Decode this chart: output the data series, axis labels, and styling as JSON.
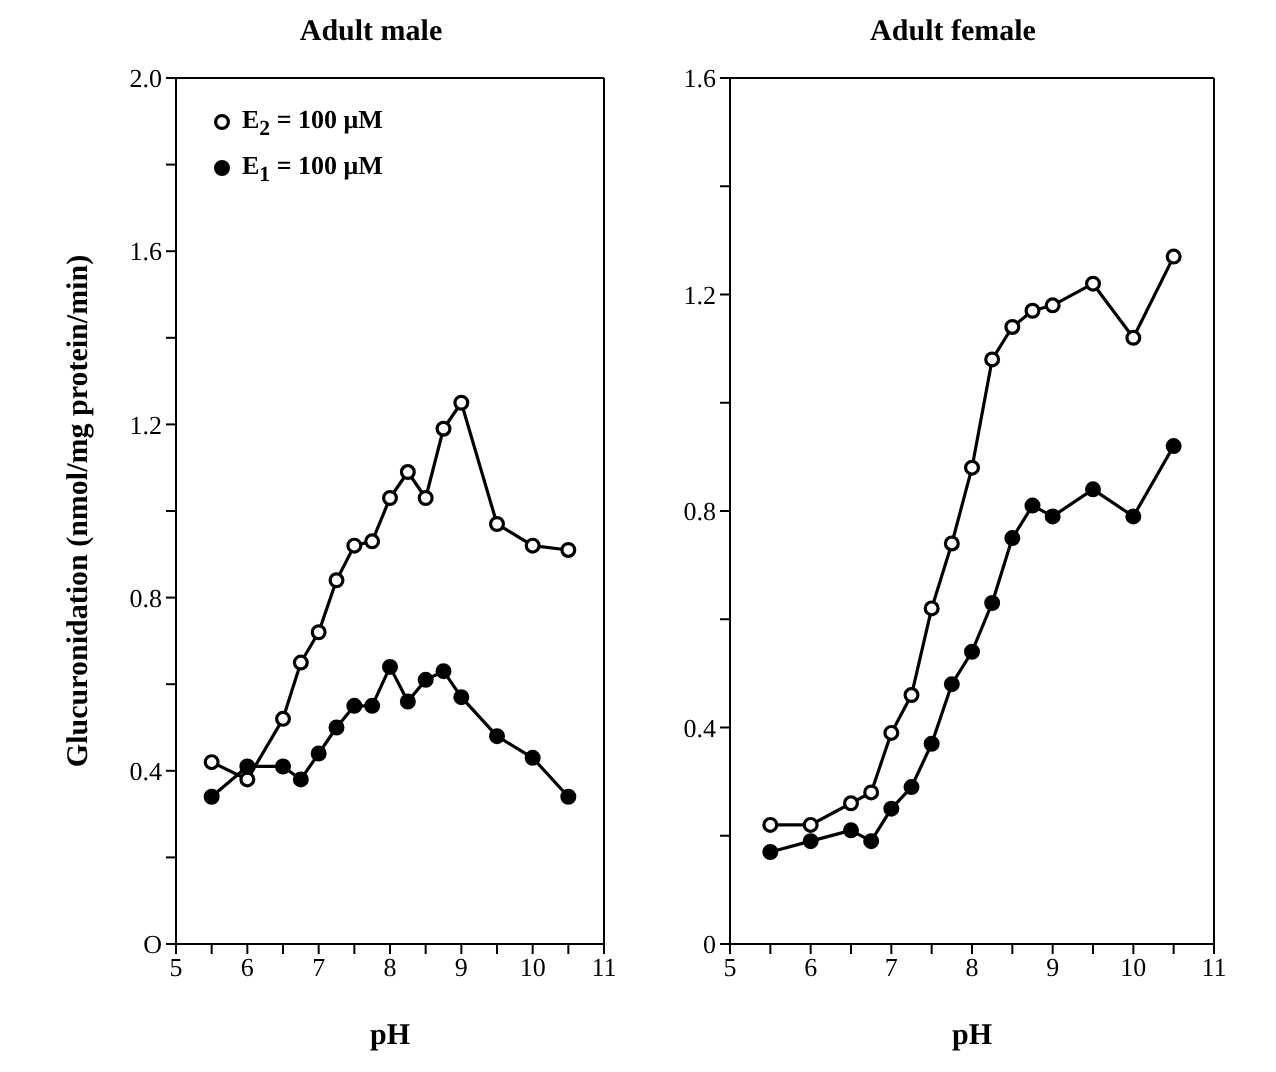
{
  "chart_data": [
    {
      "type": "line",
      "title": "Adult male",
      "xlabel": "pH",
      "ylabel": "Glucuronidation (nmol/mg protein/min)",
      "x": [
        5.5,
        6.0,
        6.5,
        6.75,
        7.0,
        7.25,
        7.5,
        7.75,
        8.0,
        8.25,
        8.5,
        8.75,
        9.0,
        9.5,
        10.0,
        10.5
      ],
      "series": [
        {
          "name": "E$_{2}$ = 100 μM",
          "color": "#000000",
          "values": [
            0.42,
            0.38,
            0.52,
            0.65,
            0.72,
            0.84,
            0.92,
            0.93,
            1.03,
            1.09,
            1.03,
            1.19,
            1.25,
            0.97,
            0.92,
            0.91
          ]
        },
        {
          "name": "E$_{1}$ = 100 μM",
          "color": "#000000",
          "values": [
            0.34,
            0.41,
            0.41,
            0.38,
            0.44,
            0.5,
            0.55,
            0.55,
            0.64,
            0.56,
            0.61,
            0.63,
            0.57,
            0.48,
            0.43,
            0.34
          ]
        }
      ],
      "xlim": [
        5,
        11
      ],
      "xticks": [
        5,
        {
          "value": 5.5,
          "label": null
        },
        6,
        {
          "value": 6.5,
          "label": null
        },
        7,
        {
          "value": 7.5,
          "label": null
        },
        8,
        {
          "value": 8.5,
          "label": null
        },
        9,
        {
          "value": 9.5,
          "label": null
        },
        10,
        {
          "value": 10.5,
          "label": null
        },
        11
      ],
      "ylim": [
        0,
        2.0
      ],
      "yticks": [
        {
          "value": 0,
          "label": "O"
        },
        {
          "value": 0.2,
          "label": null
        },
        0.4,
        {
          "value": 0.6,
          "label": null
        },
        0.8,
        {
          "value": 1.0,
          "label": null
        },
        1.2,
        {
          "value": 1.4,
          "label": null
        },
        1.6,
        {
          "value": 1.8,
          "label": null
        },
        {
          "value": 2.0,
          "label": "2.0"
        }
      ],
      "grid": false,
      "legend": "top left",
      "marker": "circle",
      "line_style": "solid"
    },
    {
      "type": "line",
      "title": "Adult female",
      "xlabel": "pH",
      "x": [
        5.5,
        6.0,
        6.5,
        6.75,
        7.0,
        7.25,
        7.5,
        7.75,
        8.0,
        8.25,
        8.5,
        8.75,
        9.0,
        9.5,
        10.0,
        10.5
      ],
      "series": [
        {
          "color": "#000000",
          "values": [
            0.22,
            0.22,
            0.26,
            0.28,
            0.39,
            0.46,
            0.62,
            0.74,
            0.88,
            1.08,
            1.14,
            1.17,
            1.18,
            1.22,
            1.12,
            1.27
          ]
        },
        {
          "color": "#000000",
          "values": [
            0.17,
            0.19,
            0.21,
            0.19,
            0.25,
            0.29,
            0.37,
            0.48,
            0.54,
            0.63,
            0.75,
            0.81,
            0.79,
            0.84,
            0.79,
            0.92
          ]
        }
      ],
      "xlim": [
        5,
        11
      ],
      "xticks": [
        5,
        {
          "value": 5.5,
          "label": null
        },
        6,
        {
          "value": 6.5,
          "label": null
        },
        7,
        {
          "value": 7.5,
          "label": null
        },
        8,
        {
          "value": 8.5,
          "label": null
        },
        9,
        {
          "value": 9.5,
          "label": null
        },
        10,
        {
          "value": 10.5,
          "label": null
        },
        11
      ],
      "ylim": [
        0,
        1.6
      ],
      "yticks": [
        0,
        {
          "value": 0.2,
          "label": null
        },
        0.4,
        {
          "value": 0.6,
          "label": null
        },
        0.8,
        {
          "value": 1.0,
          "label": null
        },
        1.2,
        {
          "value": 1.4,
          "label": null
        },
        1.6
      ],
      "grid": false,
      "legend": false,
      "marker": "circle",
      "line_style": "solid"
    }
  ]
}
